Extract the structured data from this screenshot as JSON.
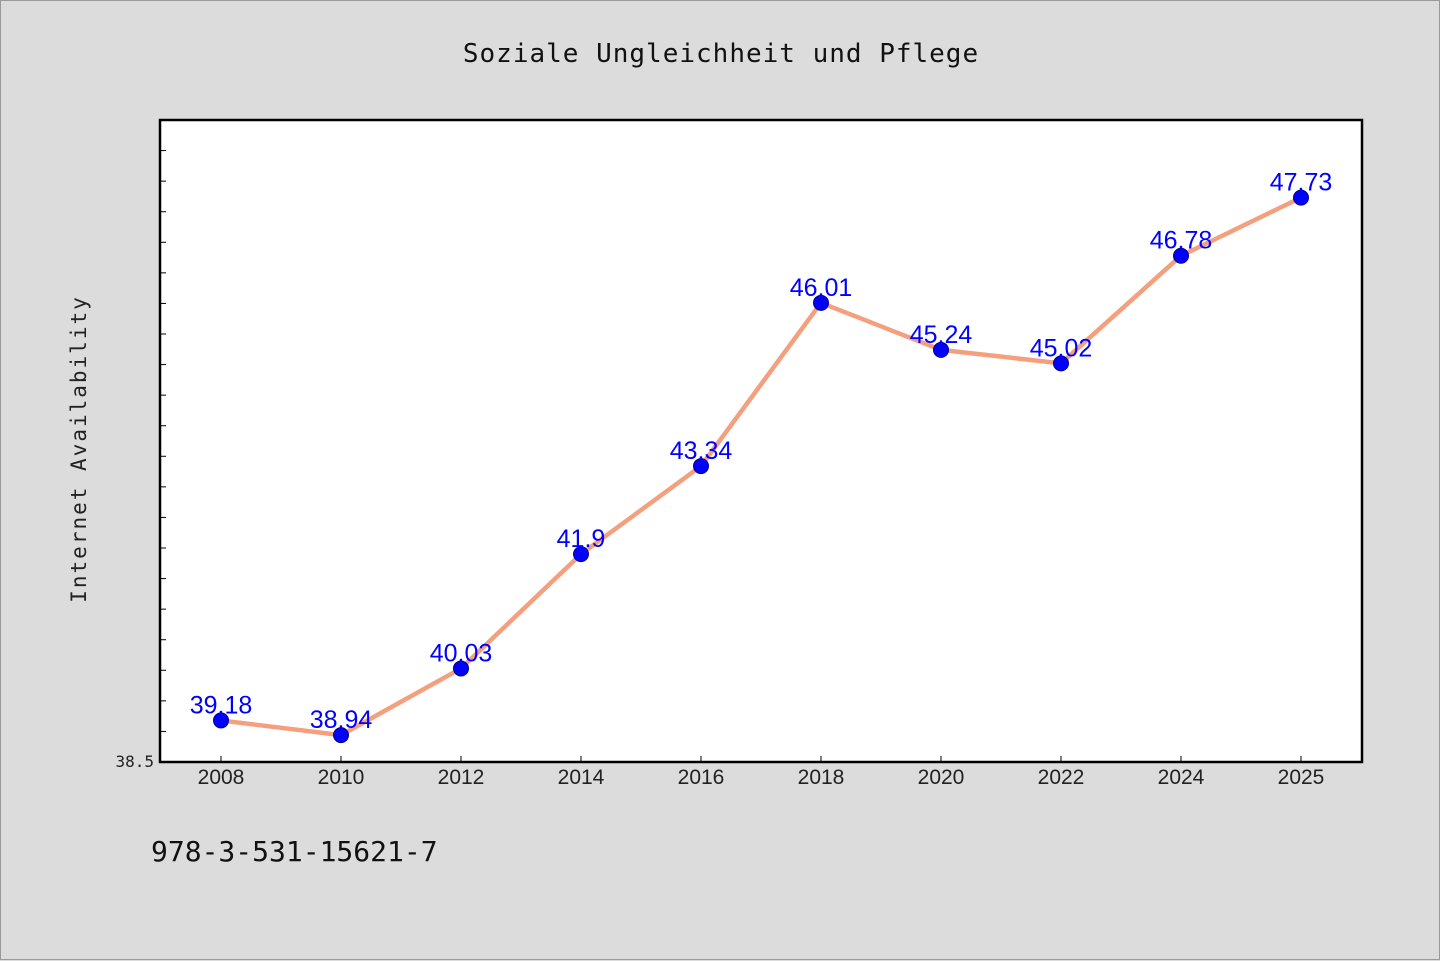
{
  "chart_data": {
    "type": "line",
    "title": "Soziale Ungleichheit und Pflege",
    "xlabel": "",
    "ylabel": "Internet Availability",
    "x": [
      "2008",
      "2010",
      "2012",
      "2014",
      "2016",
      "2018",
      "2020",
      "2022",
      "2024",
      "2025"
    ],
    "series": [
      {
        "values": [
          39.18,
          38.94,
          40.03,
          41.9,
          43.34,
          46.01,
          45.24,
          45.02,
          46.78,
          47.73
        ],
        "labels": [
          "39.18",
          "38.94",
          "40.03",
          "41.9",
          "43.34",
          "46.01",
          "45.24",
          "45.02",
          "46.78",
          "47.73"
        ]
      }
    ],
    "y_tick_labels": [
      "38.5"
    ],
    "ylim": [
      38.5,
      49.0
    ],
    "grid": false,
    "legend": "none",
    "colors": {
      "line": "#f4a07e",
      "marker": "#0000ff",
      "data_label": "#0000ff",
      "plot_bg": "#ffffff",
      "page_bg": "#dcdcdc"
    }
  },
  "footer": {
    "isbn": "978-3-531-15621-7"
  }
}
